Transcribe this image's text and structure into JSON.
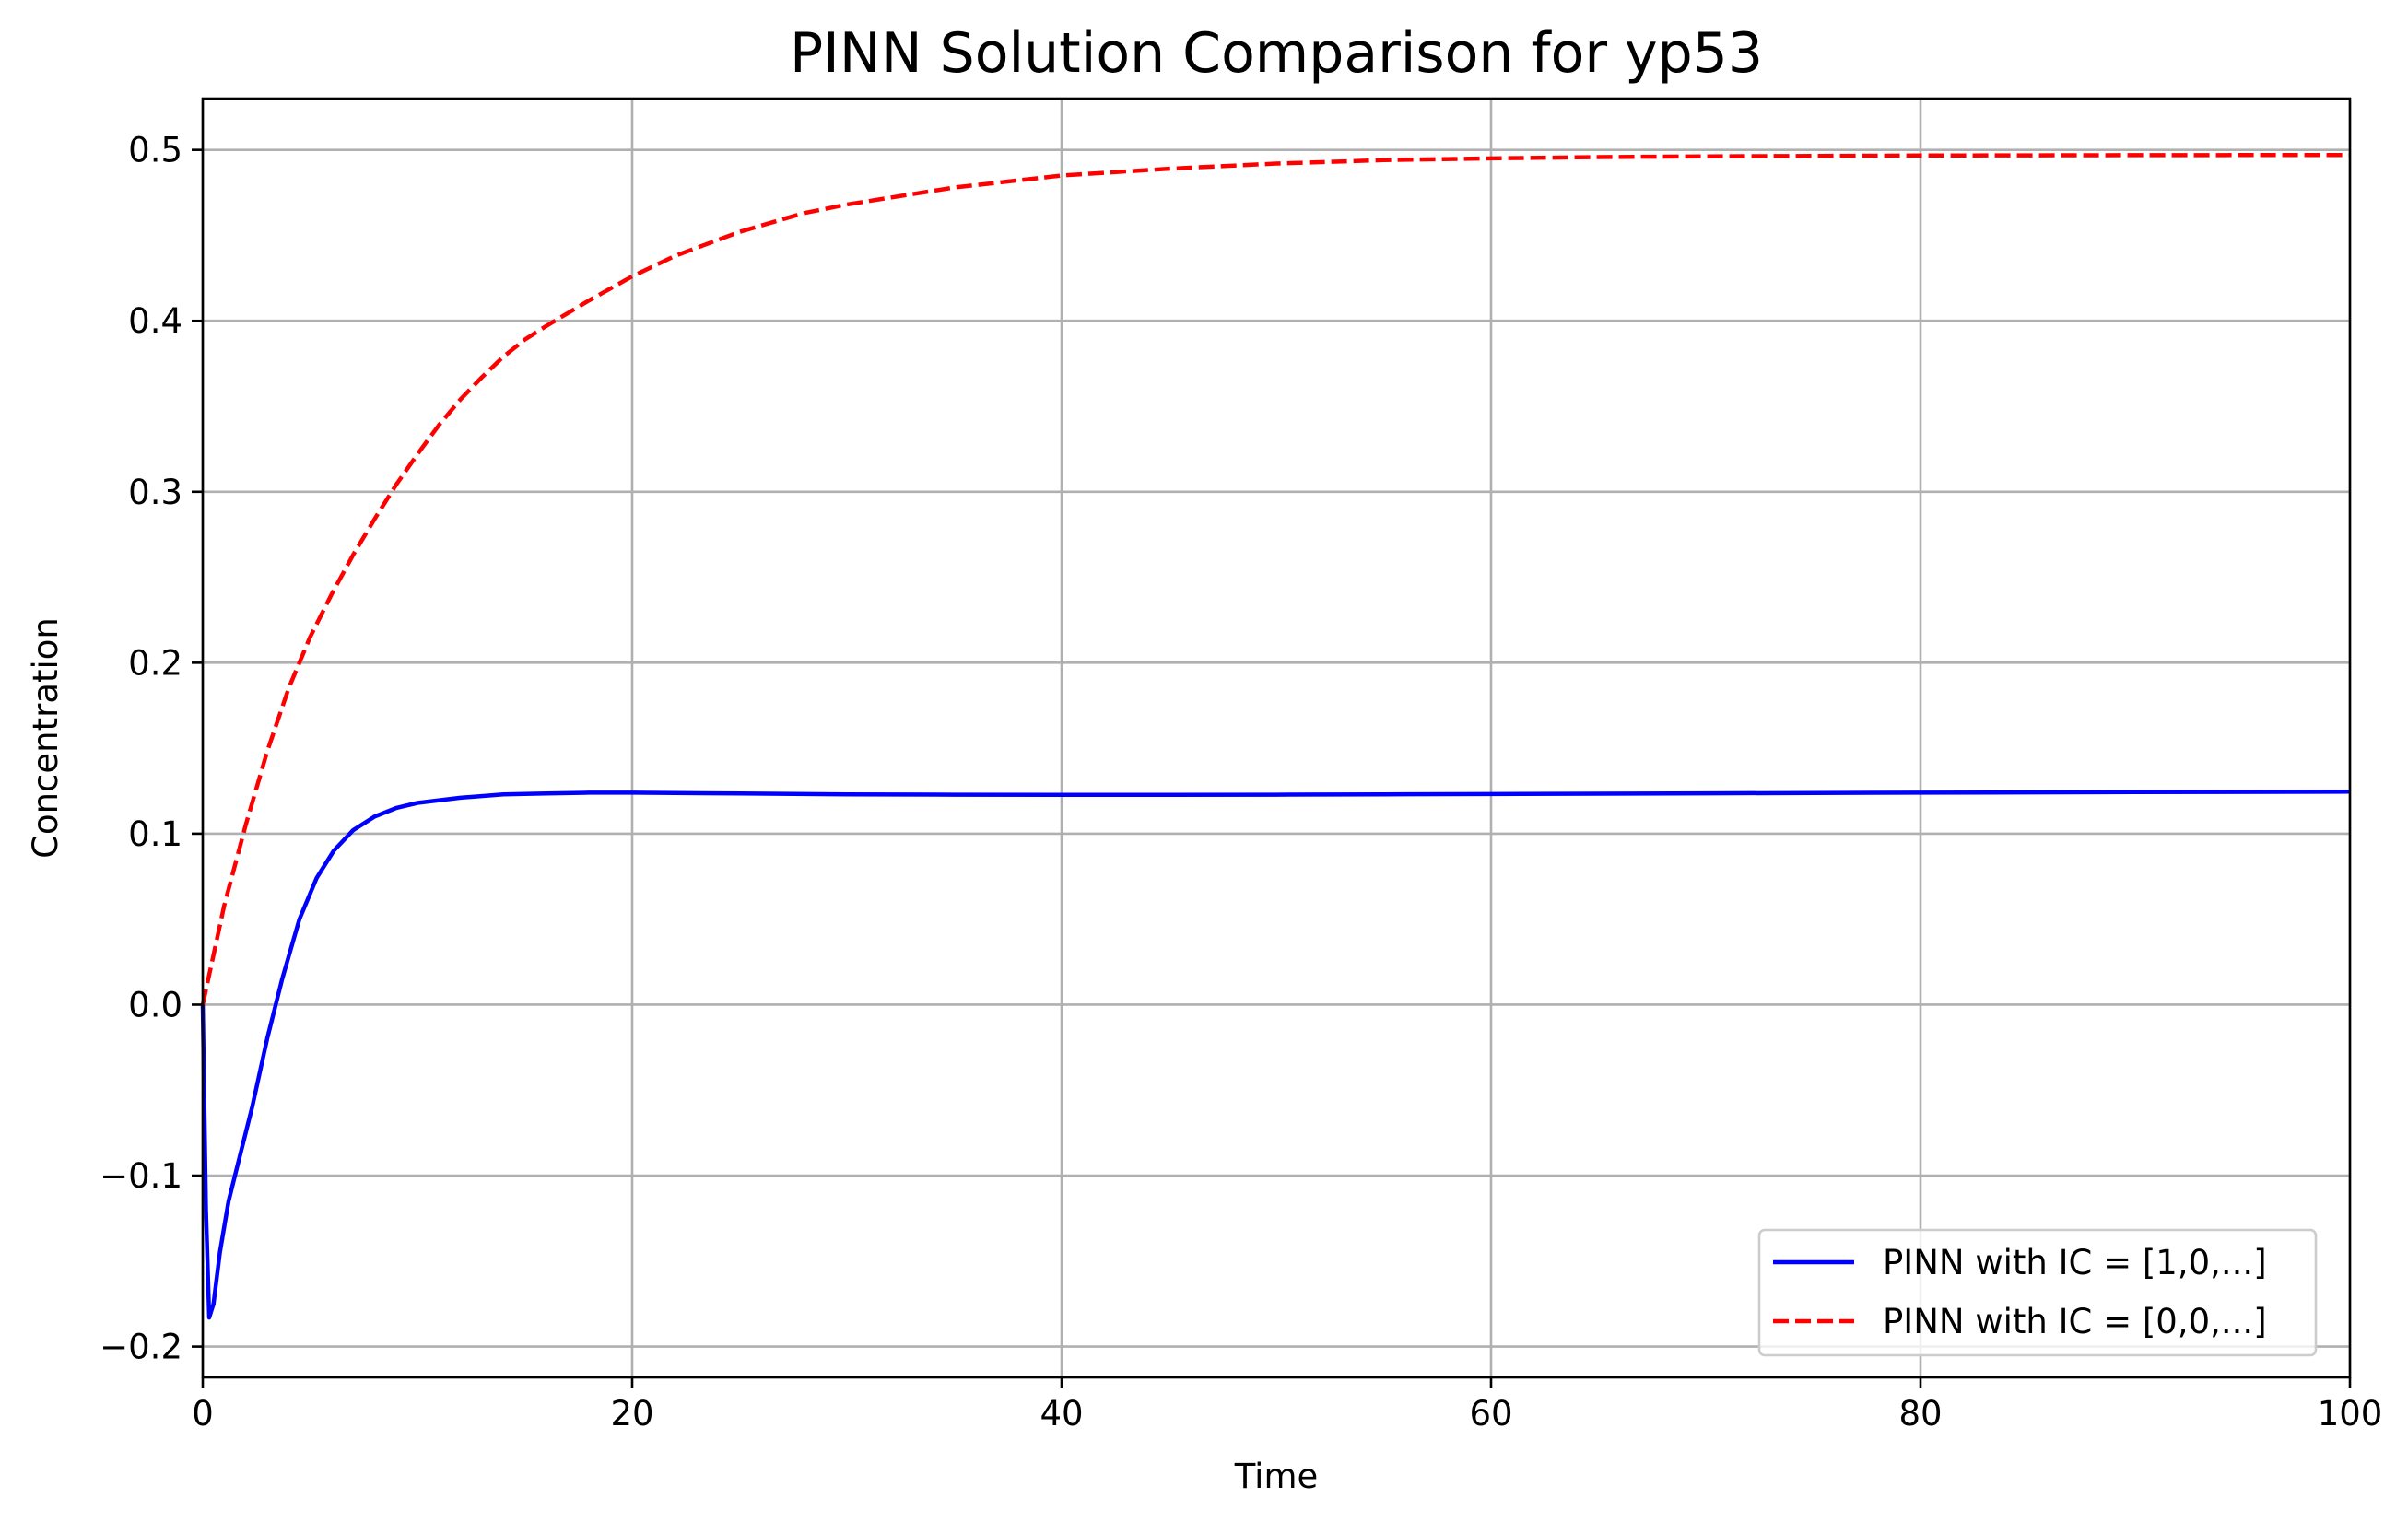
{
  "chart_data": {
    "type": "line",
    "title": "PINN Solution Comparison for yp53",
    "xlabel": "Time",
    "ylabel": "Concentration",
    "xlim": [
      0,
      100
    ],
    "ylim": [
      -0.218,
      0.53
    ],
    "xticks": [
      0,
      20,
      40,
      60,
      80,
      100
    ],
    "xtick_labels": [
      "0",
      "20",
      "40",
      "60",
      "80",
      "100"
    ],
    "yticks": [
      -0.2,
      -0.1,
      0.0,
      0.1,
      0.2,
      0.3,
      0.4,
      0.5
    ],
    "ytick_labels": [
      "−0.2",
      "−0.1",
      "0.0",
      "0.1",
      "0.2",
      "0.3",
      "0.4",
      "0.5"
    ],
    "grid": true,
    "legend_position": "bottom-right",
    "series": [
      {
        "name": "PINN with IC = [1,0,...]",
        "color": "#0000ff",
        "style": "solid",
        "x": [
          0,
          0.15,
          0.3,
          0.5,
          0.8,
          1.2,
          1.7,
          2.3,
          3,
          3.7,
          4.5,
          5.3,
          6.1,
          7,
          8,
          9,
          10,
          12,
          14,
          16,
          18,
          20,
          25,
          30,
          35,
          40,
          45,
          50,
          55,
          60,
          70,
          80,
          90,
          100
        ],
        "y": [
          0.0,
          -0.12,
          -0.183,
          -0.175,
          -0.145,
          -0.115,
          -0.09,
          -0.06,
          -0.02,
          0.015,
          0.05,
          0.074,
          0.09,
          0.102,
          0.11,
          0.115,
          0.118,
          0.121,
          0.123,
          0.1235,
          0.124,
          0.124,
          0.1235,
          0.123,
          0.1228,
          0.1227,
          0.1227,
          0.1228,
          0.123,
          0.1232,
          0.1236,
          0.124,
          0.1243,
          0.1246
        ]
      },
      {
        "name": "PINN with IC = [0,0,...]",
        "color": "#ff0000",
        "style": "dashed",
        "x": [
          0,
          1,
          2,
          3,
          4,
          5,
          6,
          7,
          8,
          9,
          10,
          11,
          12,
          13,
          14,
          15,
          16,
          18,
          20,
          22,
          25,
          28,
          30,
          35,
          40,
          45,
          50,
          55,
          60,
          65,
          70,
          80,
          90,
          100
        ],
        "y": [
          0.0,
          0.058,
          0.105,
          0.148,
          0.185,
          0.215,
          0.24,
          0.263,
          0.284,
          0.304,
          0.322,
          0.339,
          0.354,
          0.367,
          0.379,
          0.389,
          0.397,
          0.412,
          0.426,
          0.438,
          0.452,
          0.463,
          0.468,
          0.478,
          0.485,
          0.489,
          0.492,
          0.494,
          0.495,
          0.4958,
          0.4962,
          0.4967,
          0.4969,
          0.497
        ]
      }
    ]
  }
}
